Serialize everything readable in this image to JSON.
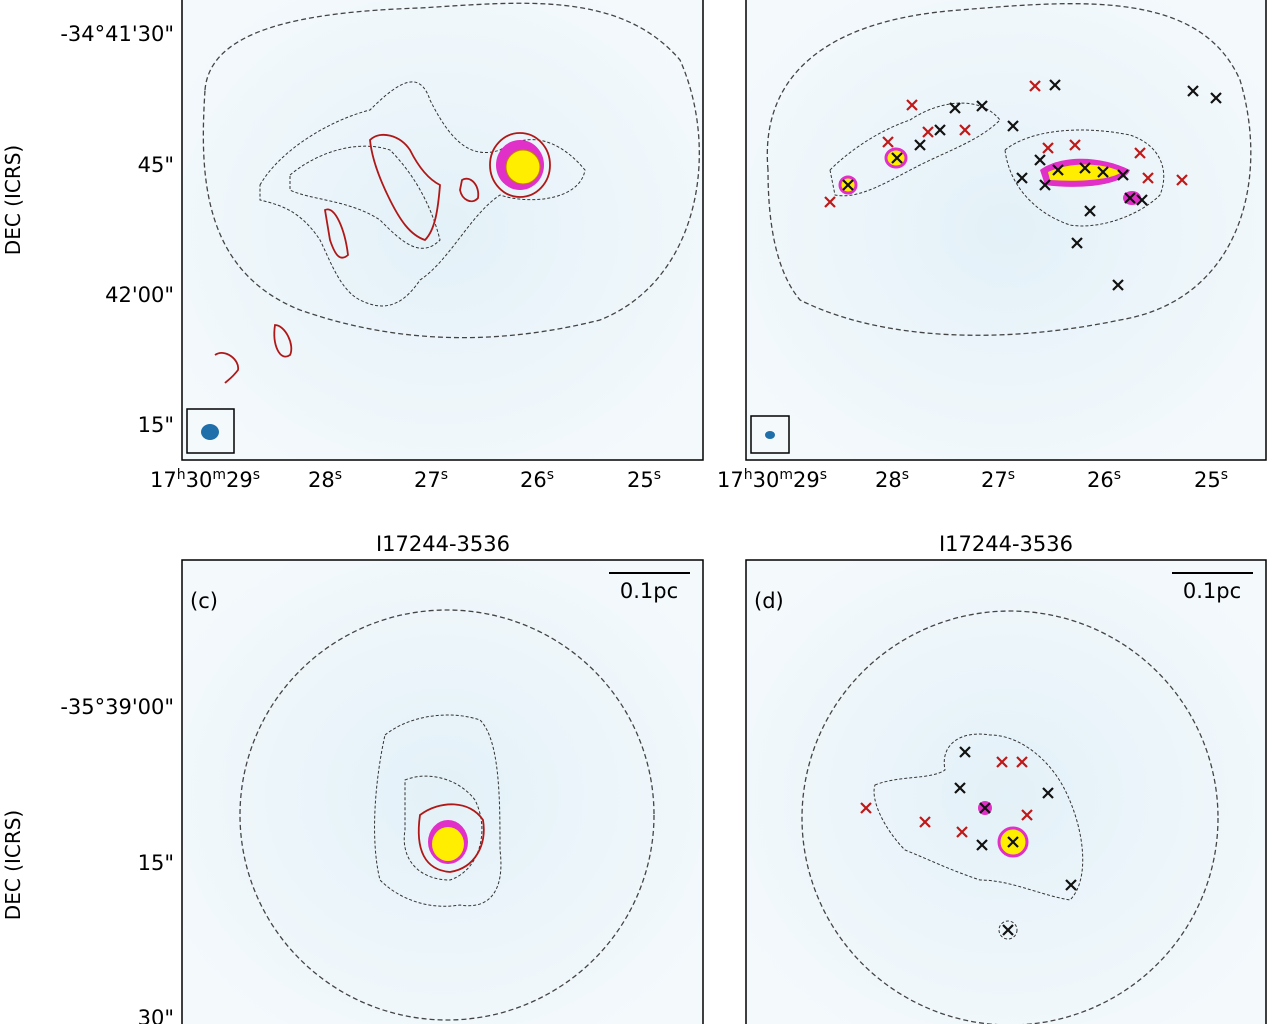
{
  "panels": [
    {
      "label": "",
      "title": "",
      "dec_ticks": [
        "-34°41'30\"",
        "45\"",
        "42'00\"",
        "15\""
      ],
      "ra_ticks": [
        "17h30m29s",
        "28s",
        "27s",
        "26s",
        "25s"
      ]
    },
    {
      "label": "",
      "title": "",
      "ra_ticks": [
        "17h30m29s",
        "28s",
        "27s",
        "26s",
        "25s"
      ]
    },
    {
      "label": "(c)",
      "title": "I17244-3536",
      "scalebar": "0.1pc",
      "dec_ticks": [
        "-35°39'00\"",
        "15\"",
        "30\""
      ]
    },
    {
      "label": "(d)",
      "title": "I17244-3536",
      "scalebar": "0.1pc"
    }
  ],
  "ra_parts": {
    "h": "17",
    "hs": "h",
    "m": "30",
    "ms": "m",
    "s": "29",
    "ss": "s",
    "t28": "28",
    "t27": "27",
    "t26": "26",
    "t25": "25"
  },
  "ylabel": "DEC (ICRS)",
  "colors": {
    "background": "#d9ecf5",
    "contour_red": "#b01818",
    "core_yellow": "#ffee00",
    "core_magenta": "#e030c8"
  }
}
